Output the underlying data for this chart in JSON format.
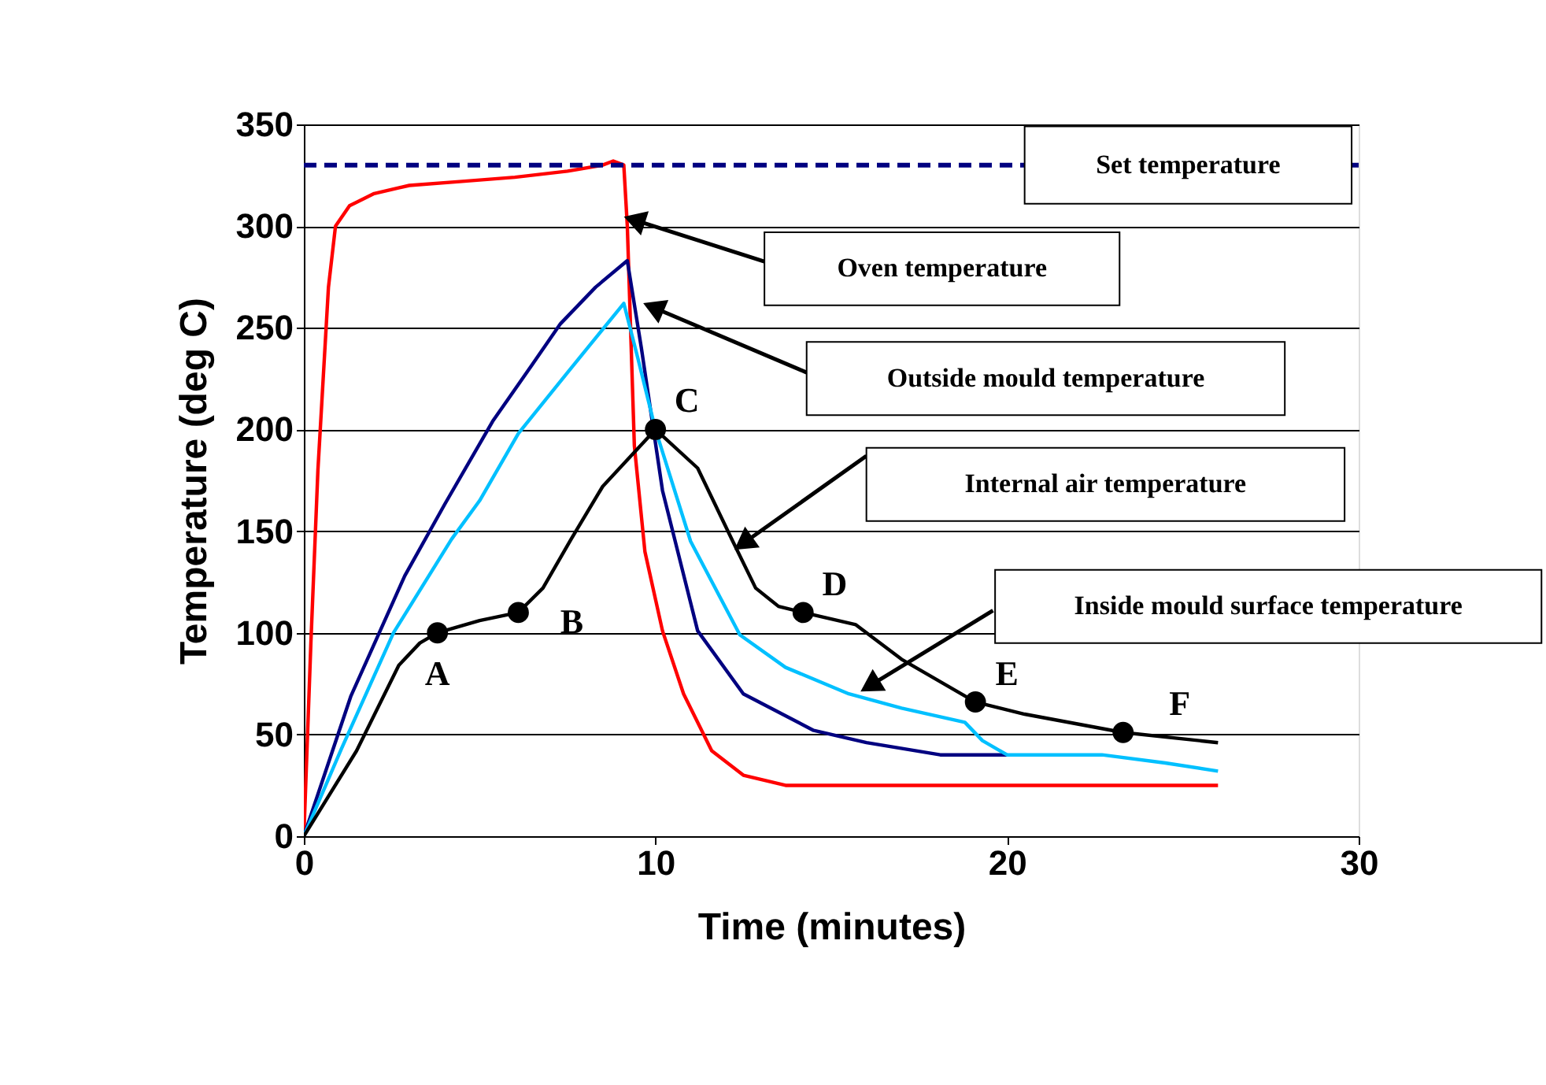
{
  "chart_data": {
    "type": "line",
    "xlabel": "Time (minutes)",
    "ylabel": "Temperature (deg C)",
    "xlim": [
      0,
      30
    ],
    "xticks": [
      0,
      10,
      20,
      30
    ],
    "ylim": [
      0,
      350
    ],
    "yticks": [
      0,
      50,
      100,
      150,
      200,
      250,
      300,
      350
    ],
    "grid": "y",
    "legend": false,
    "series": [
      {
        "color": "#ff0000",
        "x": [
          0,
          0.2,
          0.4,
          0.7,
          0.9,
          1.3,
          2,
          3,
          4.5,
          6,
          7.5,
          8.5,
          8.8,
          9.1,
          9.2,
          9.4,
          9.7,
          10.2,
          10.8,
          11.6,
          12.5,
          13.7,
          16,
          20,
          26
        ],
        "values": [
          0,
          95,
          180,
          270,
          300,
          310,
          316,
          320,
          322,
          324,
          327,
          330,
          332,
          330,
          300,
          192,
          140,
          101,
          70,
          42,
          30,
          25,
          25,
          25,
          25
        ]
      },
      {
        "color": "#000080",
        "x": [
          0,
          1.34,
          2.87,
          4,
          5.37,
          6.5,
          7.3,
          8.3,
          9.2,
          9.6,
          10.2,
          11.2,
          12.5,
          14.5,
          16,
          18.1,
          20
        ],
        "values": [
          0,
          69,
          128,
          163,
          204,
          232,
          252,
          270,
          283,
          240,
          170,
          101,
          70,
          52,
          46,
          40,
          40
        ]
      },
      {
        "color": "#00c0ff",
        "x": [
          0,
          1.07,
          2.55,
          4.2,
          5,
          6.1,
          7.5,
          9.1,
          9.5,
          10,
          11,
          12.4,
          13.7,
          15.5,
          17,
          18.8,
          19.3,
          20,
          22.7,
          24.5,
          26
        ],
        "values": [
          0,
          43,
          100,
          146,
          165,
          198,
          228,
          262,
          235,
          200,
          145,
          99,
          83,
          70,
          63,
          56,
          47,
          40,
          40,
          36,
          32
        ]
      },
      {
        "color": "#000000",
        "x": [
          0,
          1.5,
          2.7,
          3.3,
          3.8,
          5,
          6.1,
          6.8,
          7.6,
          8.5,
          10,
          11.2,
          12.2,
          12.85,
          13.5,
          14.2,
          15.7,
          17,
          19.1,
          20.5,
          23.3,
          26
        ],
        "values": [
          0,
          42,
          84,
          95,
          100,
          106,
          110,
          122,
          146,
          172,
          200,
          181,
          145,
          122,
          113,
          110,
          104,
          87,
          66,
          60,
          51,
          46
        ]
      },
      {
        "type": "scatter",
        "marker": "circle",
        "color": "#000000",
        "x": [
          3.8,
          6.1,
          10,
          14.2,
          19.1,
          23.3
        ],
        "values": [
          100,
          110,
          200,
          110,
          66,
          51
        ]
      }
    ],
    "ref_lines": [
      {
        "axis": "y",
        "value": 330,
        "label": "Set temperature",
        "color": "#000080",
        "line_style": "dashed"
      }
    ],
    "annotations": [
      {
        "text": "A",
        "x": 3.8,
        "y": 100
      },
      {
        "text": "B",
        "x": 6.1,
        "y": 110
      },
      {
        "text": "C",
        "x": 10,
        "y": 200
      },
      {
        "text": "D",
        "x": 14.2,
        "y": 110
      },
      {
        "text": "E",
        "x": 19.1,
        "y": 66
      },
      {
        "text": "F",
        "x": 23.3,
        "y": 51
      },
      "Oven temperature",
      "Outside mould temperature",
      "Internal air temperature",
      "Inside mould surface temperature"
    ]
  }
}
